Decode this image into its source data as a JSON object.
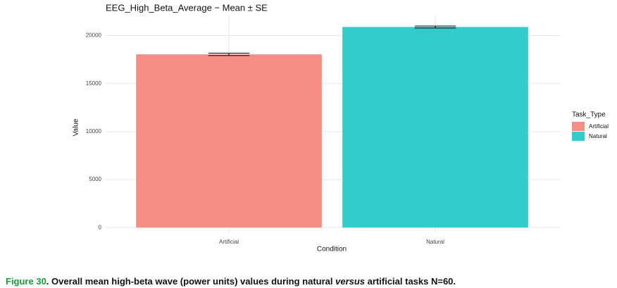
{
  "chart_data": {
    "type": "bar",
    "title": "EEG_High_Beta_Average − Mean ± SE",
    "x_label": "Condition",
    "y_label": "Value",
    "categories": [
      "Artificial",
      "Natural"
    ],
    "values": [
      18050,
      20900
    ],
    "errors": [
      120,
      100
    ],
    "colors": [
      "#f68e86",
      "#33cbcc"
    ],
    "ylim": [
      -500,
      22100
    ],
    "yticks": [
      0,
      5000,
      10000,
      15000,
      20000
    ],
    "grid": true,
    "legend": {
      "title": "Task_Type",
      "position": "right"
    }
  },
  "caption": {
    "label": "Figure 30",
    "text_before": ". Overall mean high-beta wave (power units) values during natural ",
    "italic": "versus",
    "text_after": " artificial tasks N=60."
  }
}
